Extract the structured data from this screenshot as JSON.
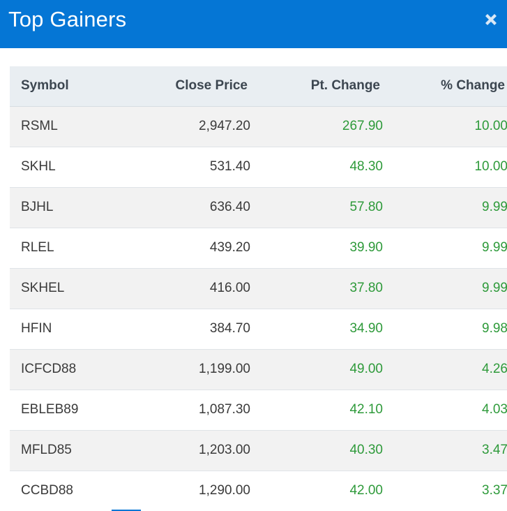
{
  "header": {
    "title": "Top Gainers",
    "close_icon": "close-x-icon"
  },
  "colors": {
    "header_bg": "#0576d5",
    "gain": "#2e9a3a",
    "row_alt": "#f2f2f2",
    "table_header_bg": "#e9eef2"
  },
  "table": {
    "columns": [
      "Symbol",
      "Close Price",
      "Pt. Change",
      "% Change"
    ],
    "rows": [
      {
        "symbol": "RSML",
        "close": "2,947.20",
        "pt": "267.90",
        "pct": "10.00"
      },
      {
        "symbol": "SKHL",
        "close": "531.40",
        "pt": "48.30",
        "pct": "10.00"
      },
      {
        "symbol": "BJHL",
        "close": "636.40",
        "pt": "57.80",
        "pct": "9.99"
      },
      {
        "symbol": "RLEL",
        "close": "439.20",
        "pt": "39.90",
        "pct": "9.99"
      },
      {
        "symbol": "SKHEL",
        "close": "416.00",
        "pt": "37.80",
        "pct": "9.99"
      },
      {
        "symbol": "HFIN",
        "close": "384.70",
        "pt": "34.90",
        "pct": "9.98"
      },
      {
        "symbol": "ICFCD88",
        "close": "1,199.00",
        "pt": "49.00",
        "pct": "4.26"
      },
      {
        "symbol": "EBLEB89",
        "close": "1,087.30",
        "pt": "42.10",
        "pct": "4.03"
      },
      {
        "symbol": "MFLD85",
        "close": "1,203.00",
        "pt": "40.30",
        "pct": "3.47"
      },
      {
        "symbol": "CCBD88",
        "close": "1,290.00",
        "pt": "42.00",
        "pct": "3.37"
      }
    ]
  }
}
